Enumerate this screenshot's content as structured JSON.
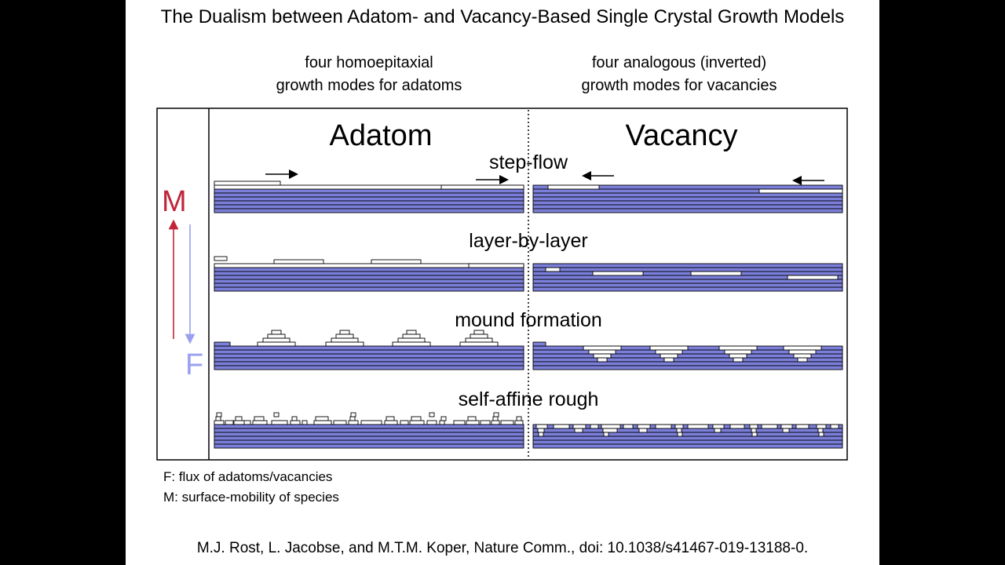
{
  "title": "The Dualism between Adatom- and Vacancy-Based Single Crystal Growth Models",
  "headers": {
    "adatom_line1": "four homoepitaxial",
    "adatom_line2": "growth modes for adatoms",
    "vacancy_line1": "four analogous (inverted)",
    "vacancy_line2": "growth modes for vacancies"
  },
  "figure": {
    "col_adatom": "Adatom",
    "col_vacancy": "Vacancy",
    "modes": [
      "step-flow",
      "layer-by-layer",
      "mound formation",
      "self-affine rough"
    ],
    "axis_m": "M",
    "axis_f": "F"
  },
  "notes": {
    "f": "F:   flux of adatoms/vacancies",
    "m": "M: surface-mobility  of species"
  },
  "citation": "M.J. Rost, L. Jacobse, and M.T.M. Koper, Nature Comm., doi: 10.1038/s41467-019-13188-0.",
  "colors": {
    "layer_fill": "#7b7fd9",
    "m_arrow": "#c0263a",
    "f_arrow": "#9aa0f0"
  }
}
